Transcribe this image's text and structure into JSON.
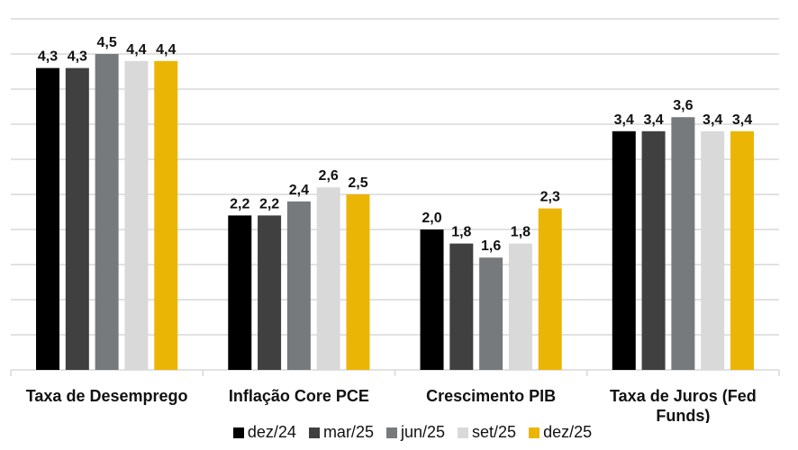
{
  "chart_data": {
    "type": "bar",
    "title": "",
    "xlabel": "",
    "ylabel": "",
    "ylim": [
      0,
      5
    ],
    "ytick_step": 0.5,
    "grid": true,
    "legend_position": "bottom",
    "categories": [
      "Taxa de Desemprego",
      "Inflação Core PCE",
      "Crescimento PIB",
      "Taxa de Juros (Fed Funds)"
    ],
    "category_lines": [
      [
        "Taxa de Desemprego"
      ],
      [
        "Inflação Core PCE"
      ],
      [
        "Crescimento PIB"
      ],
      [
        "Taxa de Juros (Fed",
        "Funds)"
      ]
    ],
    "series": [
      {
        "name": "dez/24",
        "color": "#000000",
        "values": [
          4.3,
          2.2,
          2.0,
          3.4
        ],
        "labels": [
          "4,3",
          "2,2",
          "2,0",
          "3,4"
        ]
      },
      {
        "name": "mar/25",
        "color": "#404040",
        "values": [
          4.3,
          2.2,
          1.8,
          3.4
        ],
        "labels": [
          "4,3",
          "2,2",
          "1,8",
          "3,4"
        ]
      },
      {
        "name": "jun/25",
        "color": "#767a7c",
        "values": [
          4.5,
          2.4,
          1.6,
          3.6
        ],
        "labels": [
          "4,5",
          "2,4",
          "1,6",
          "3,6"
        ]
      },
      {
        "name": "set/25",
        "color": "#d9d9d9",
        "values": [
          4.4,
          2.6,
          1.8,
          3.4
        ],
        "labels": [
          "4,4",
          "2,6",
          "1,8",
          "3,4"
        ]
      },
      {
        "name": "dez/25",
        "color": "#ebb505",
        "values": [
          4.4,
          2.5,
          2.3,
          3.4
        ],
        "labels": [
          "4,4",
          "2,5",
          "2,3",
          "3,4"
        ]
      }
    ]
  }
}
